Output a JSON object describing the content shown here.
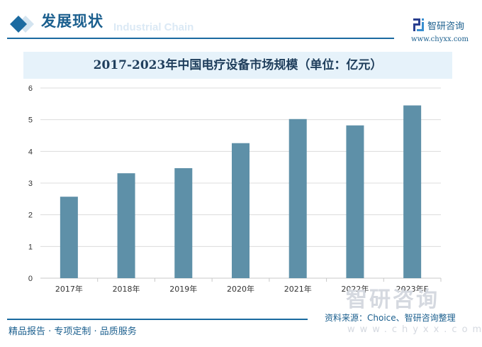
{
  "header": {
    "title": "发展现状",
    "watermark": "Industrial Chain",
    "logo_text": "智研咨询",
    "logo_url": "www.chyxx.com"
  },
  "footer": {
    "slogan": "精品报告 · 专项定制 · 品质服务",
    "source": "资料来源：Choice、智研咨询整理",
    "watermark": "智研咨询",
    "watermark_url": "www.chyxx.com"
  },
  "chart_data": {
    "type": "bar",
    "title": "2017-2023年中国电疗设备市场规模（单位：亿元）",
    "categories": [
      "2017年",
      "2018年",
      "2019年",
      "2020年",
      "2021年",
      "2022年",
      "2023年E"
    ],
    "values": [
      2.57,
      3.31,
      3.47,
      4.26,
      5.02,
      4.82,
      5.45
    ],
    "ylim": [
      0,
      6
    ],
    "yticks": [
      "0",
      "1",
      "2",
      "3",
      "4",
      "5",
      "6"
    ],
    "grid": true,
    "bar_color": "#5e90a8",
    "xlabel": "",
    "ylabel": ""
  }
}
